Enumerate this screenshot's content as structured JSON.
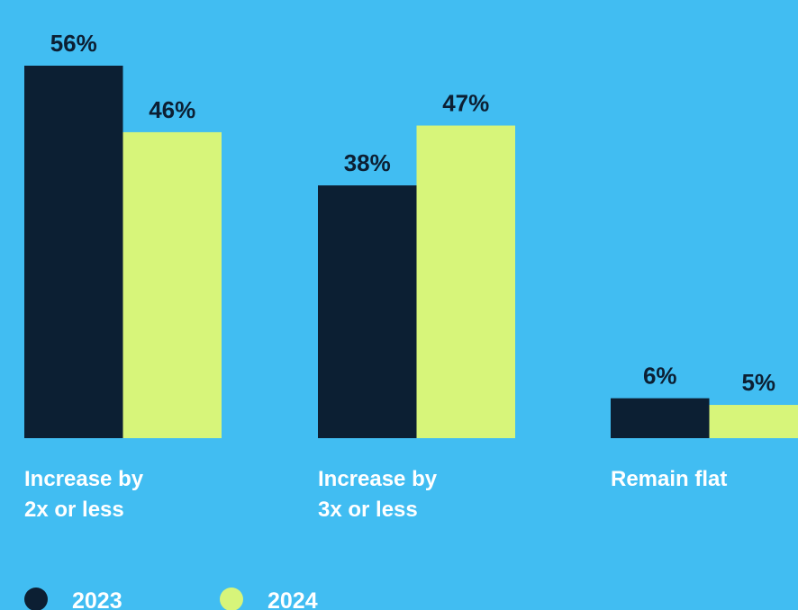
{
  "chart_data": {
    "type": "bar",
    "categories": [
      [
        "Increase by",
        "2x or less"
      ],
      [
        "Increase by",
        "3x or less"
      ],
      [
        "Remain flat"
      ]
    ],
    "series": [
      {
        "name": "2023",
        "color": "#0c1f33",
        "values": [
          56,
          38,
          6
        ],
        "labels": [
          "56%",
          "38%",
          "6%"
        ]
      },
      {
        "name": "2024",
        "color": "#d7f57a",
        "values": [
          46,
          47,
          5
        ],
        "labels": [
          "46%",
          "47%",
          "5%"
        ]
      }
    ],
    "ylim": [
      0,
      56
    ],
    "grid": false,
    "legend_position": "bottom-left"
  }
}
